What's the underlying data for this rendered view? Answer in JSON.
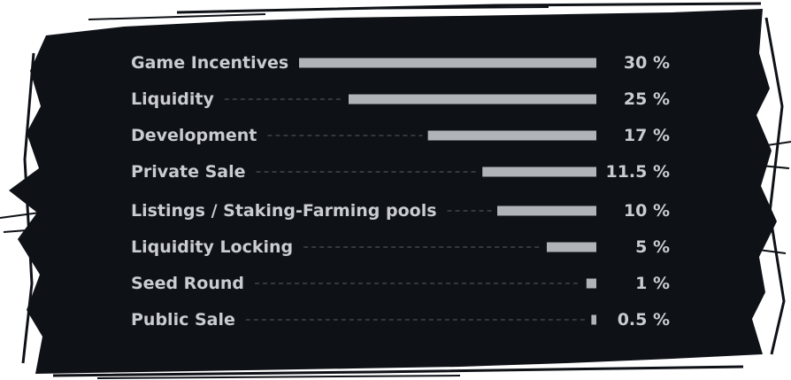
{
  "colors": {
    "background": "#ffffff",
    "panel": "#0e1116",
    "bar": "#b0b3b7",
    "text": "#c9ccd1",
    "leader": "#5a5f66"
  },
  "chart_data": {
    "type": "bar",
    "orientation": "horizontal",
    "title": "",
    "xlabel": "",
    "ylabel": "",
    "grid": false,
    "legend": "none",
    "xlim": [
      0,
      30
    ],
    "categories": [
      "Game Incentives",
      "Liquidity",
      "Development",
      "Private Sale",
      "Listings / Staking-Farming pools",
      "Liquidity Locking",
      "Seed Round",
      "Public Sale"
    ],
    "values": [
      30,
      25,
      17,
      11.5,
      10,
      5,
      1,
      0.5
    ],
    "value_labels": [
      "30 %",
      "25 %",
      "17 %",
      "11.5 %",
      "10 %",
      "5 %",
      "1 %",
      "0.5 %"
    ]
  }
}
